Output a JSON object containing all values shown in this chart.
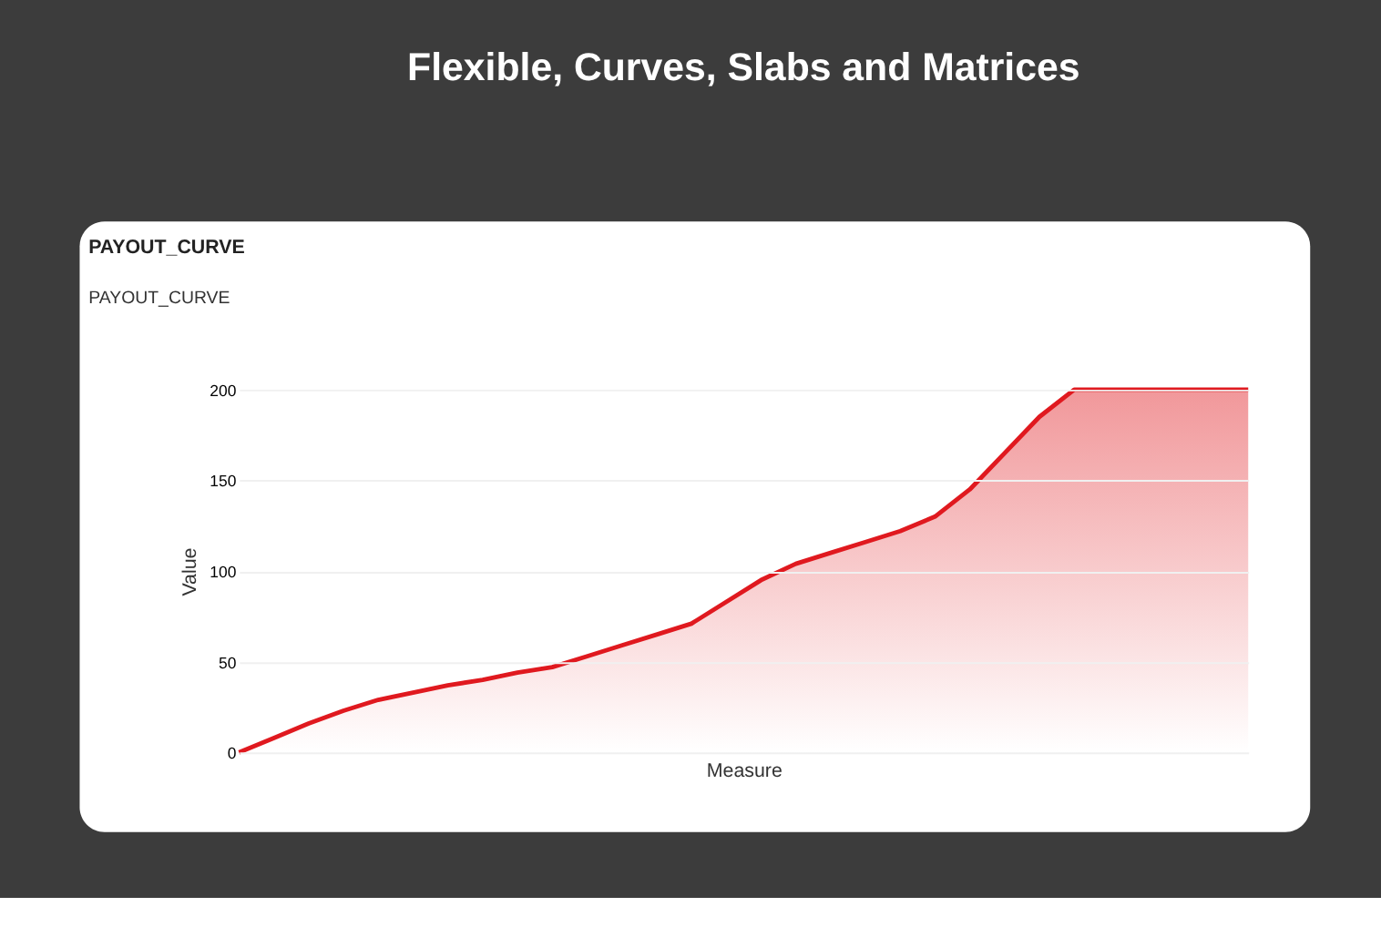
{
  "chart_data": {
    "type": "area",
    "title": "Flexible, Curves, Slabs and Matrices",
    "subtitle": "PAYOUT_CURVE",
    "annotations": [
      "PAYOUT_CURVE"
    ],
    "xlabel": "Measure",
    "ylabel": "Value",
    "categories": [
      null,
      null,
      null,
      null,
      null,
      null,
      null,
      null,
      null,
      null,
      null,
      null,
      null,
      null,
      null,
      null,
      null,
      null,
      null,
      null,
      null,
      null,
      null,
      null,
      null,
      null,
      null,
      null,
      null,
      null
    ],
    "series": [
      {
        "color": "#e0191f",
        "values": [
          0,
          8,
          16,
          23,
          29,
          33,
          37,
          40,
          44,
          47,
          53,
          59,
          65,
          71,
          83,
          95,
          104,
          110,
          116,
          122,
          130,
          145,
          165,
          185,
          200,
          200,
          200,
          200,
          200,
          200
        ]
      }
    ],
    "ylim": [
      0,
      200
    ],
    "yticks": [
      0,
      50,
      100,
      150,
      200
    ],
    "grid": "y",
    "tick_labels": "y"
  }
}
